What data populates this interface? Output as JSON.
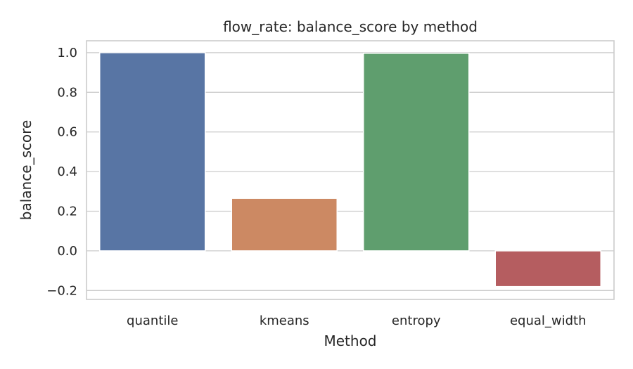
{
  "chart_data": {
    "type": "bar",
    "title": "flow_rate: balance_score by method",
    "xlabel": "Method",
    "ylabel": "balance_score",
    "categories": [
      "quantile",
      "kmeans",
      "entropy",
      "equal_width"
    ],
    "values": [
      1.0,
      0.265,
      0.997,
      -0.18
    ],
    "colors": [
      "#5875a4",
      "#cc8963",
      "#5f9e6e",
      "#b55d60"
    ],
    "ylim": [
      -0.245,
      1.06
    ],
    "yticks": [
      -0.2,
      0.0,
      0.2,
      0.4,
      0.6,
      0.8,
      1.0
    ],
    "ytick_labels": [
      "−0.2",
      "0.0",
      "0.2",
      "0.4",
      "0.6",
      "0.8",
      "1.0"
    ],
    "grid": true,
    "legend": "none"
  }
}
